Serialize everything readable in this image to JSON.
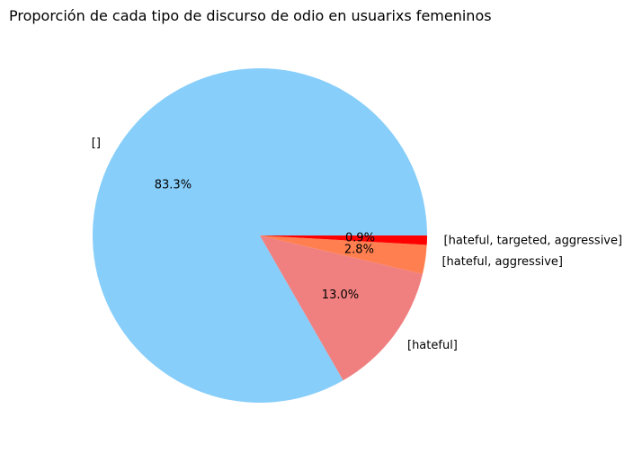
{
  "chart_data": {
    "type": "pie",
    "title": "Proporción de cada tipo de discurso de odio en usuarixs femeninos",
    "start_angle": 0,
    "direction": "counterclockwise",
    "slices": [
      {
        "label": "[]",
        "value": 83.3,
        "pct_label": "83.3%",
        "color": "#87CEFA"
      },
      {
        "label": "[hateful]",
        "value": 13.0,
        "pct_label": "13.0%",
        "color": "#F08080"
      },
      {
        "label": "[hateful, aggressive]",
        "value": 2.8,
        "pct_label": "2.8%",
        "color": "#FF7F50"
      },
      {
        "label": "[hateful, targeted, aggressive]",
        "value": 0.9,
        "pct_label": "0.9%",
        "color": "#FF0000"
      }
    ]
  }
}
